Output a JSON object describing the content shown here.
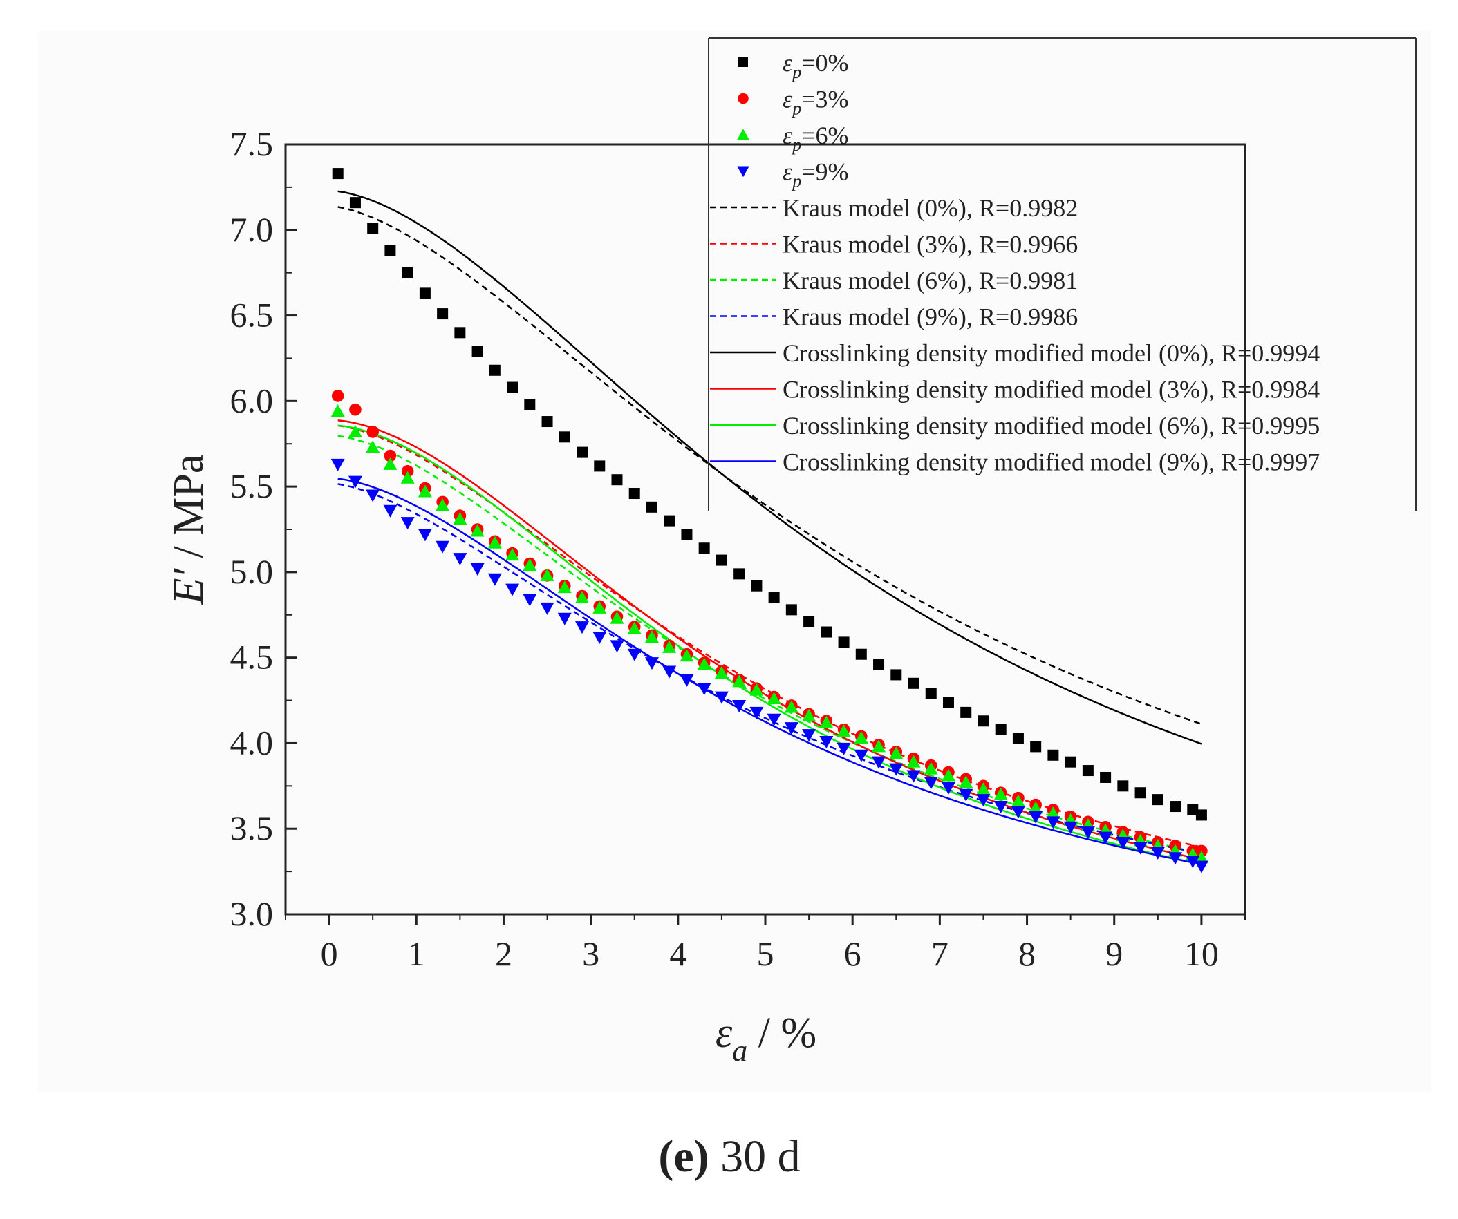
{
  "chart_data": {
    "type": "scatter",
    "caption": {
      "letter": "(e)",
      "rest": " 30 d"
    },
    "xlabel": {
      "symbol": "ε",
      "sub": "a",
      "unit": " / %"
    },
    "ylabel": {
      "symbol": "E′",
      "unit": " / MPa"
    },
    "xlim": [
      -0.5,
      10.5
    ],
    "ylim": [
      3.0,
      7.5
    ],
    "x_ticks": [
      0,
      1,
      2,
      3,
      4,
      5,
      6,
      7,
      8,
      9,
      10
    ],
    "x_tick_labels": [
      "0",
      "1",
      "2",
      "3",
      "4",
      "5",
      "6",
      "7",
      "8",
      "9",
      "10"
    ],
    "y_ticks": [
      3.0,
      3.5,
      4.0,
      4.5,
      5.0,
      5.5,
      6.0,
      6.5,
      7.0,
      7.5
    ],
    "y_tick_labels": [
      "3.0",
      "3.5",
      "4.0",
      "4.5",
      "5.0",
      "5.5",
      "6.0",
      "6.5",
      "7.0",
      "7.5"
    ],
    "legend_position": "top-right",
    "x": [
      0.1,
      0.3,
      0.5,
      0.7,
      0.9,
      1.1,
      1.3,
      1.5,
      1.7,
      1.9,
      2.1,
      2.3,
      2.5,
      2.7,
      2.9,
      3.1,
      3.3,
      3.5,
      3.7,
      3.9,
      4.1,
      4.3,
      4.5,
      4.7,
      4.9,
      5.1,
      5.3,
      5.5,
      5.7,
      5.9,
      6.1,
      6.3,
      6.5,
      6.7,
      6.9,
      7.1,
      7.3,
      7.5,
      7.7,
      7.9,
      8.1,
      8.3,
      8.5,
      8.7,
      8.9,
      9.1,
      9.3,
      9.5,
      9.7,
      9.9,
      10.0
    ],
    "series": [
      {
        "name": "0%",
        "legend_sub": "p",
        "legend_value": "=0%",
        "color": "#000000",
        "marker": "square",
        "values": [
          7.33,
          7.16,
          7.01,
          6.88,
          6.75,
          6.63,
          6.51,
          6.4,
          6.29,
          6.18,
          6.08,
          5.98,
          5.88,
          5.79,
          5.7,
          5.62,
          5.54,
          5.46,
          5.38,
          5.3,
          5.22,
          5.14,
          5.07,
          4.99,
          4.92,
          4.85,
          4.78,
          4.71,
          4.65,
          4.59,
          4.52,
          4.46,
          4.4,
          4.35,
          4.29,
          4.24,
          4.18,
          4.13,
          4.08,
          4.03,
          3.98,
          3.93,
          3.89,
          3.84,
          3.8,
          3.75,
          3.71,
          3.67,
          3.63,
          3.61,
          3.58
        ]
      },
      {
        "name": "3%",
        "legend_sub": "p",
        "legend_value": "=3%",
        "color": "#ff0000",
        "marker": "circle",
        "values": [
          6.03,
          5.95,
          5.82,
          5.68,
          5.59,
          5.49,
          5.41,
          5.33,
          5.25,
          5.18,
          5.11,
          5.05,
          4.98,
          4.92,
          4.86,
          4.8,
          4.74,
          4.68,
          4.63,
          4.57,
          4.52,
          4.47,
          4.42,
          4.37,
          4.32,
          4.27,
          4.22,
          4.17,
          4.13,
          4.08,
          4.04,
          3.99,
          3.95,
          3.91,
          3.87,
          3.83,
          3.79,
          3.75,
          3.71,
          3.68,
          3.64,
          3.61,
          3.57,
          3.54,
          3.51,
          3.48,
          3.45,
          3.42,
          3.4,
          3.37,
          3.37
        ]
      },
      {
        "name": "6%",
        "legend_sub": "p",
        "legend_value": "=6%",
        "color": "#00ee00",
        "marker": "triangle-up",
        "values": [
          5.94,
          5.82,
          5.73,
          5.63,
          5.55,
          5.47,
          5.39,
          5.31,
          5.24,
          5.17,
          5.1,
          5.04,
          4.98,
          4.91,
          4.85,
          4.79,
          4.73,
          4.67,
          4.62,
          4.56,
          4.51,
          4.46,
          4.41,
          4.36,
          4.31,
          4.26,
          4.21,
          4.16,
          4.12,
          4.07,
          4.03,
          3.98,
          3.94,
          3.89,
          3.85,
          3.81,
          3.77,
          3.73,
          3.7,
          3.66,
          3.62,
          3.59,
          3.55,
          3.52,
          3.49,
          3.46,
          3.43,
          3.4,
          3.37,
          3.35,
          3.33
        ]
      },
      {
        "name": "9%",
        "legend_sub": "p",
        "legend_value": "=9%",
        "color": "#0000ff",
        "marker": "triangle-down",
        "values": [
          5.63,
          5.53,
          5.45,
          5.36,
          5.29,
          5.22,
          5.15,
          5.08,
          5.02,
          4.96,
          4.9,
          4.84,
          4.79,
          4.73,
          4.68,
          4.62,
          4.57,
          4.52,
          4.47,
          4.42,
          4.37,
          4.32,
          4.27,
          4.22,
          4.18,
          4.14,
          4.09,
          4.05,
          4.01,
          3.97,
          3.93,
          3.89,
          3.85,
          3.81,
          3.77,
          3.74,
          3.7,
          3.67,
          3.63,
          3.6,
          3.57,
          3.54,
          3.51,
          3.48,
          3.45,
          3.42,
          3.39,
          3.36,
          3.33,
          3.31,
          3.28
        ]
      }
    ],
    "fits": [
      {
        "label": "Kraus model (0%), R=0.9982",
        "color": "#000000",
        "dash": true,
        "x_start": 0.1,
        "x_end": 10.0,
        "E0": 7.14,
        "Einf": 2.4,
        "ec": 7.0,
        "m": 0.8
      },
      {
        "label": "Kraus model (3%), R=0.9966",
        "color": "#ff0000",
        "dash": true,
        "x_start": 0.1,
        "x_end": 10.0,
        "E0": 5.86,
        "Einf": 2.5,
        "ec": 5.5,
        "m": 0.85
      },
      {
        "label": "Kraus model (6%), R=0.9981",
        "color": "#00ee00",
        "dash": true,
        "x_start": 0.1,
        "x_end": 10.0,
        "E0": 5.8,
        "Einf": 2.5,
        "ec": 5.4,
        "m": 0.85
      },
      {
        "label": "Kraus model (9%), R=0.9986",
        "color": "#0000ff",
        "dash": true,
        "x_start": 0.1,
        "x_end": 10.0,
        "E0": 5.52,
        "Einf": 2.5,
        "ec": 5.6,
        "m": 0.8
      },
      {
        "label": "Crosslinking density modified model (0%), R=0.9994",
        "color": "#000000",
        "dash": false,
        "x_start": 0.1,
        "x_end": 10.0,
        "E0": 7.23,
        "Einf": 2.4,
        "ec": 6.6,
        "m": 0.85
      },
      {
        "label": "Crosslinking density modified model (3%), R=0.9984",
        "color": "#ff0000",
        "dash": false,
        "x_start": 0.1,
        "x_end": 10.0,
        "E0": 5.89,
        "Einf": 2.5,
        "ec": 5.3,
        "m": 0.9
      },
      {
        "label": "Crosslinking density modified model (6%), R=0.9995",
        "color": "#00ee00",
        "dash": false,
        "x_start": 0.1,
        "x_end": 10.0,
        "E0": 5.86,
        "Einf": 2.5,
        "ec": 5.2,
        "m": 0.9
      },
      {
        "label": "Crosslinking density modified model (9%), R=0.9997",
        "color": "#0000ff",
        "dash": false,
        "x_start": 0.1,
        "x_end": 10.0,
        "E0": 5.55,
        "Einf": 2.5,
        "ec": 5.4,
        "m": 0.85
      }
    ]
  }
}
